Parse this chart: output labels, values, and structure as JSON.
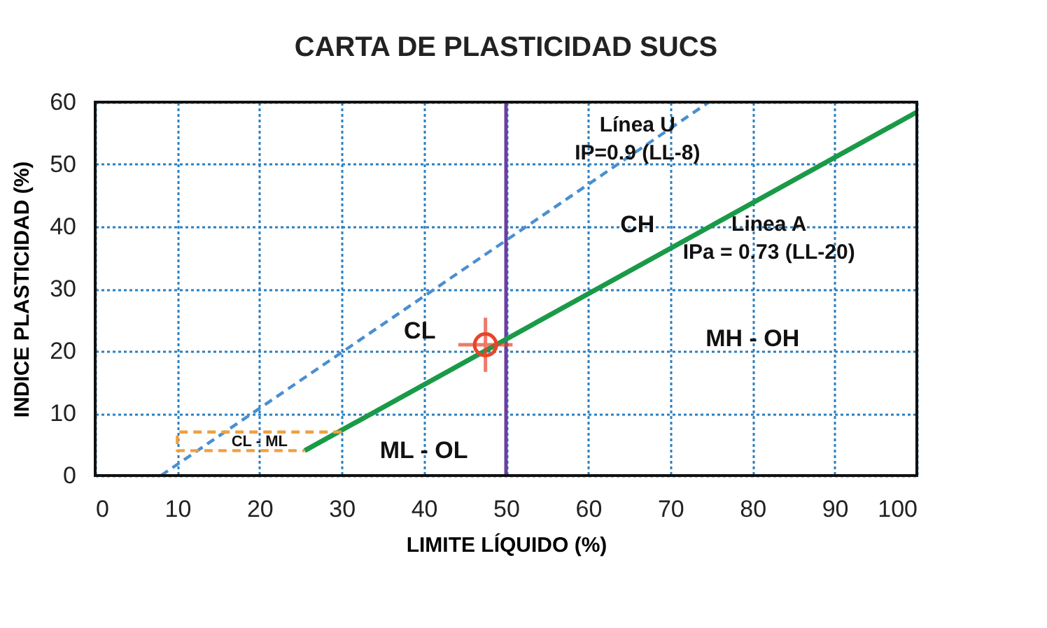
{
  "chart_data": {
    "type": "line",
    "title": "CARTA DE PLASTICIDAD SUCS",
    "xlabel": "LIMITE LÍQUIDO (%)",
    "ylabel": "INDICE PLASTICIDAD (%)",
    "xlim": [
      0,
      100
    ],
    "ylim": [
      0,
      60
    ],
    "xticks": [
      0,
      10,
      20,
      30,
      40,
      50,
      60,
      70,
      80,
      90,
      100
    ],
    "yticks": [
      0,
      10,
      20,
      30,
      40,
      50,
      60
    ],
    "grid": true,
    "series": [
      {
        "x": [
          25.5,
          100
        ],
        "values": [
          4,
          58.4
        ],
        "color": "#1a9a48",
        "line_style": "solid"
      },
      {
        "x": [
          8,
          74.7
        ],
        "values": [
          0,
          60
        ],
        "color": "#4a8fd0",
        "line_style": "dashed"
      },
      {
        "x": [
          30,
          10,
          10,
          25.5
        ],
        "values": [
          7,
          7,
          4,
          4
        ],
        "color": "#f0a040",
        "line_style": "dashed"
      },
      {
        "type": "scatter",
        "x": [
          47.5
        ],
        "values": [
          21
        ],
        "color": "#e8442a",
        "marker": "circle"
      }
    ],
    "ref_lines": [
      {
        "axis": "x",
        "value": 50,
        "color": "#6a3fa0",
        "line_style": "solid"
      }
    ],
    "annotations": [
      "Línea U",
      "IP=0.9 (LL-8)",
      "Linea A",
      "IPa = 0.73 (LL-20)",
      "CH",
      "CL",
      "MH - OH",
      "ML - OL",
      "CL - ML"
    ]
  }
}
